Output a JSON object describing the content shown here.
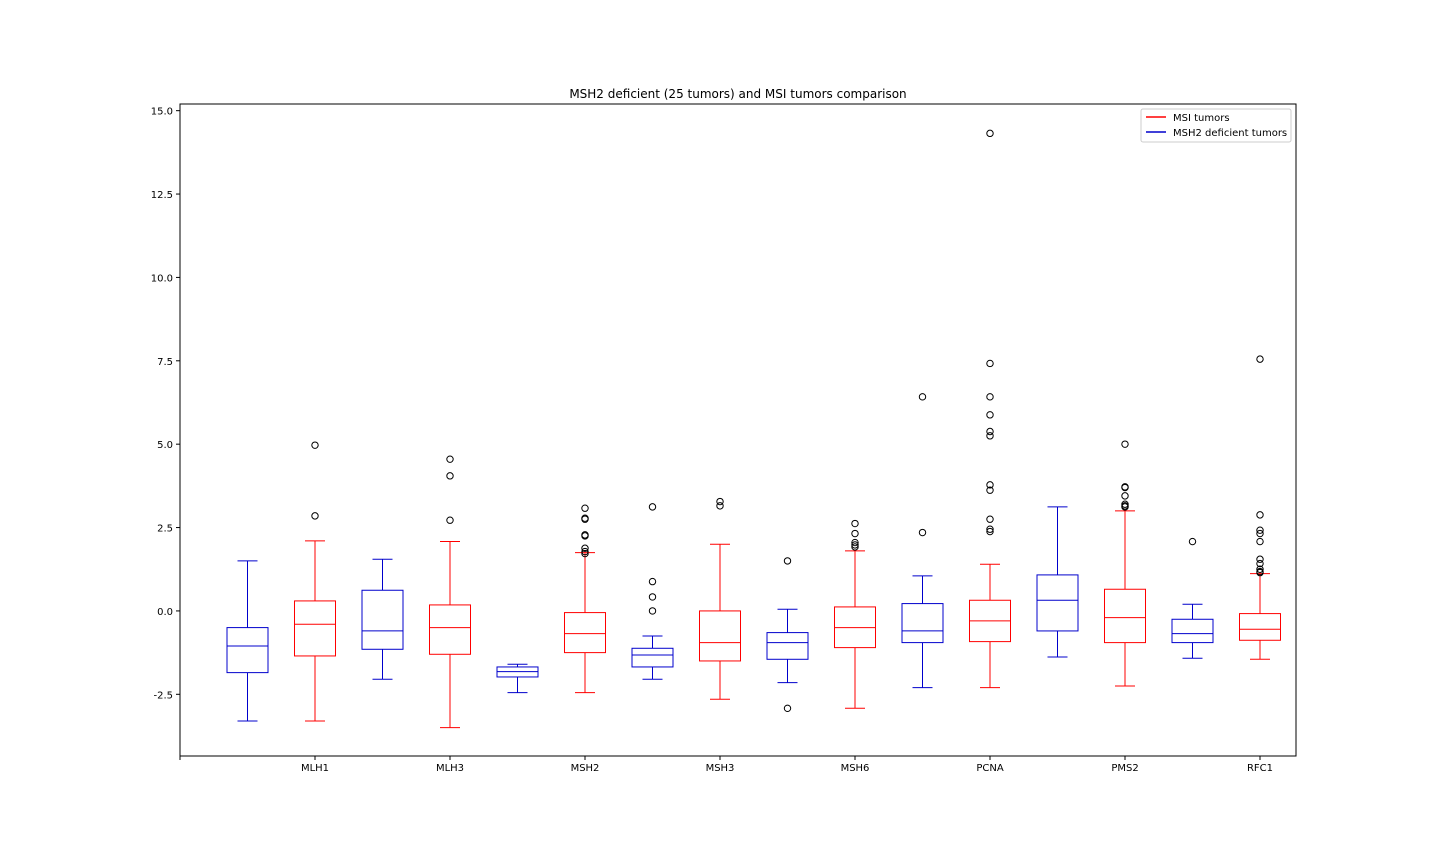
{
  "chart_data": {
    "type": "boxplot",
    "title": "MSH2 deficient (25 tumors) and MSI tumors comparison",
    "xlabel": "",
    "ylabel": "",
    "ylim": [
      -4.35,
      15.2
    ],
    "y_ticks": [
      "-2.5",
      "0.0",
      "2.5",
      "5.0",
      "7.5",
      "10.0",
      "12.5",
      "15.0"
    ],
    "y_tick_values": [
      -2.5,
      0.0,
      2.5,
      5.0,
      7.5,
      10.0,
      12.5,
      15.0
    ],
    "categories": [
      "MLH1",
      "MLH3",
      "MSH2",
      "MSH3",
      "MSH6",
      "PCNA",
      "PMS2",
      "RFC1"
    ],
    "grid": false,
    "legend_position": "top-right",
    "colors": {
      "MSI tumors": "#ff0000",
      "MSH2 deficient tumors": "#0000cc"
    },
    "legend": [
      "MSI tumors",
      "MSH2 deficient tumors"
    ],
    "boxes": [
      {
        "gene": "MLH1",
        "group": "MSH2 deficient tumors",
        "whisker_low": -3.3,
        "q1": -1.85,
        "median": -1.05,
        "q3": -0.5,
        "whisker_high": 1.5,
        "outliers": []
      },
      {
        "gene": "MLH1",
        "group": "MSI tumors",
        "whisker_low": -3.3,
        "q1": -1.35,
        "median": -0.4,
        "q3": 0.3,
        "whisker_high": 2.1,
        "outliers": [
          4.97,
          2.85
        ]
      },
      {
        "gene": "MLH3",
        "group": "MSH2 deficient tumors",
        "whisker_low": -2.05,
        "q1": -1.15,
        "median": -0.6,
        "q3": 0.62,
        "whisker_high": 1.55,
        "outliers": []
      },
      {
        "gene": "MLH3",
        "group": "MSI tumors",
        "whisker_low": -3.5,
        "q1": -1.3,
        "median": -0.5,
        "q3": 0.18,
        "whisker_high": 2.08,
        "outliers": [
          4.55,
          4.05,
          2.72
        ]
      },
      {
        "gene": "MSH2",
        "group": "MSH2 deficient tumors",
        "whisker_low": -2.45,
        "q1": -1.98,
        "median": -1.82,
        "q3": -1.68,
        "whisker_high": -1.6,
        "outliers": []
      },
      {
        "gene": "MSH2",
        "group": "MSI tumors",
        "whisker_low": -2.45,
        "q1": -1.25,
        "median": -0.68,
        "q3": -0.05,
        "whisker_high": 1.75,
        "outliers": [
          3.08,
          2.78,
          2.75,
          2.28,
          2.25,
          1.88,
          1.78,
          1.72
        ]
      },
      {
        "gene": "MSH3",
        "group": "MSH2 deficient tumors",
        "whisker_low": -2.05,
        "q1": -1.68,
        "median": -1.32,
        "q3": -1.12,
        "whisker_high": -0.75,
        "outliers": [
          3.12,
          0.88,
          0.42,
          0.0
        ]
      },
      {
        "gene": "MSH3",
        "group": "MSI tumors",
        "whisker_low": -2.65,
        "q1": -1.5,
        "median": -0.95,
        "q3": 0.0,
        "whisker_high": 2.0,
        "outliers": [
          3.28,
          3.15
        ]
      },
      {
        "gene": "MSH6",
        "group": "MSH2 deficient tumors",
        "whisker_low": -2.15,
        "q1": -1.45,
        "median": -0.95,
        "q3": -0.65,
        "whisker_high": 0.05,
        "outliers": [
          1.5,
          -2.92
        ]
      },
      {
        "gene": "MSH6",
        "group": "MSI tumors",
        "whisker_low": -2.92,
        "q1": -1.1,
        "median": -0.5,
        "q3": 0.12,
        "whisker_high": 1.8,
        "outliers": [
          2.62,
          2.32,
          2.05,
          1.98,
          1.92
        ]
      },
      {
        "gene": "PCNA",
        "group": "MSH2 deficient tumors",
        "whisker_low": -2.3,
        "q1": -0.95,
        "median": -0.6,
        "q3": 0.22,
        "whisker_high": 1.05,
        "outliers": [
          6.42,
          2.35
        ]
      },
      {
        "gene": "PCNA",
        "group": "MSI tumors",
        "whisker_low": -2.3,
        "q1": -0.92,
        "median": -0.3,
        "q3": 0.32,
        "whisker_high": 1.4,
        "outliers": [
          14.32,
          7.42,
          6.42,
          5.88,
          5.38,
          5.25,
          3.78,
          3.62,
          2.75,
          2.45,
          2.38
        ]
      },
      {
        "gene": "PMS2",
        "group": "MSH2 deficient tumors",
        "whisker_low": -1.38,
        "q1": -0.6,
        "median": 0.32,
        "q3": 1.08,
        "whisker_high": 3.12,
        "outliers": []
      },
      {
        "gene": "PMS2",
        "group": "MSI tumors",
        "whisker_low": -2.25,
        "q1": -0.95,
        "median": -0.2,
        "q3": 0.65,
        "whisker_high": 3.0,
        "outliers": [
          5.0,
          3.72,
          3.7,
          3.45,
          3.2,
          3.15,
          3.12
        ]
      },
      {
        "gene": "RFC1",
        "group": "MSH2 deficient tumors",
        "whisker_low": -1.42,
        "q1": -0.95,
        "median": -0.68,
        "q3": -0.25,
        "whisker_high": 0.2,
        "outliers": [
          2.08
        ]
      },
      {
        "gene": "RFC1",
        "group": "MSI tumors",
        "whisker_low": -1.45,
        "q1": -0.88,
        "median": -0.55,
        "q3": -0.08,
        "whisker_high": 1.12,
        "outliers": [
          7.55,
          2.88,
          2.42,
          2.32,
          2.08,
          1.55,
          1.42,
          1.25,
          1.18,
          1.15
        ]
      }
    ]
  }
}
